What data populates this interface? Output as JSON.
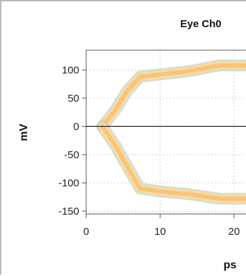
{
  "chart_data": {
    "type": "area",
    "title": "Eye Ch0",
    "xlabel": "ps",
    "ylabel": "mV",
    "xlim": [
      0,
      22
    ],
    "ylim": [
      -155,
      135
    ],
    "x_ticks": [
      0,
      10,
      20
    ],
    "x_tick_labels": [
      "0",
      "10",
      "20"
    ],
    "y_ticks": [
      100,
      50,
      0,
      -50,
      -100,
      -150
    ],
    "y_tick_labels": [
      "100",
      "50",
      "0",
      "-50",
      "-100",
      "-150"
    ],
    "grid": true,
    "series": [
      {
        "role": "upper-boundary",
        "points": [
          [
            2.2,
            0
          ],
          [
            4.0,
            30
          ],
          [
            5.5,
            62
          ],
          [
            7.3,
            88
          ],
          [
            10,
            92
          ],
          [
            14,
            98
          ],
          [
            18,
            108
          ],
          [
            22,
            108
          ]
        ],
        "band": 13
      },
      {
        "role": "lower-boundary",
        "points": [
          [
            2.2,
            0
          ],
          [
            4.0,
            -35
          ],
          [
            5.5,
            -70
          ],
          [
            7.3,
            -110
          ],
          [
            10,
            -115
          ],
          [
            14,
            -120
          ],
          [
            18,
            -128
          ],
          [
            22,
            -128
          ]
        ],
        "band": 13
      }
    ],
    "colors": {
      "band_outer": "#f9d9a3",
      "band_core": "#f5bd6a",
      "band_edge": "#9cc9bd",
      "zero_line": "#222222",
      "axis": "#555555",
      "grid": "#cfcfcf"
    }
  }
}
